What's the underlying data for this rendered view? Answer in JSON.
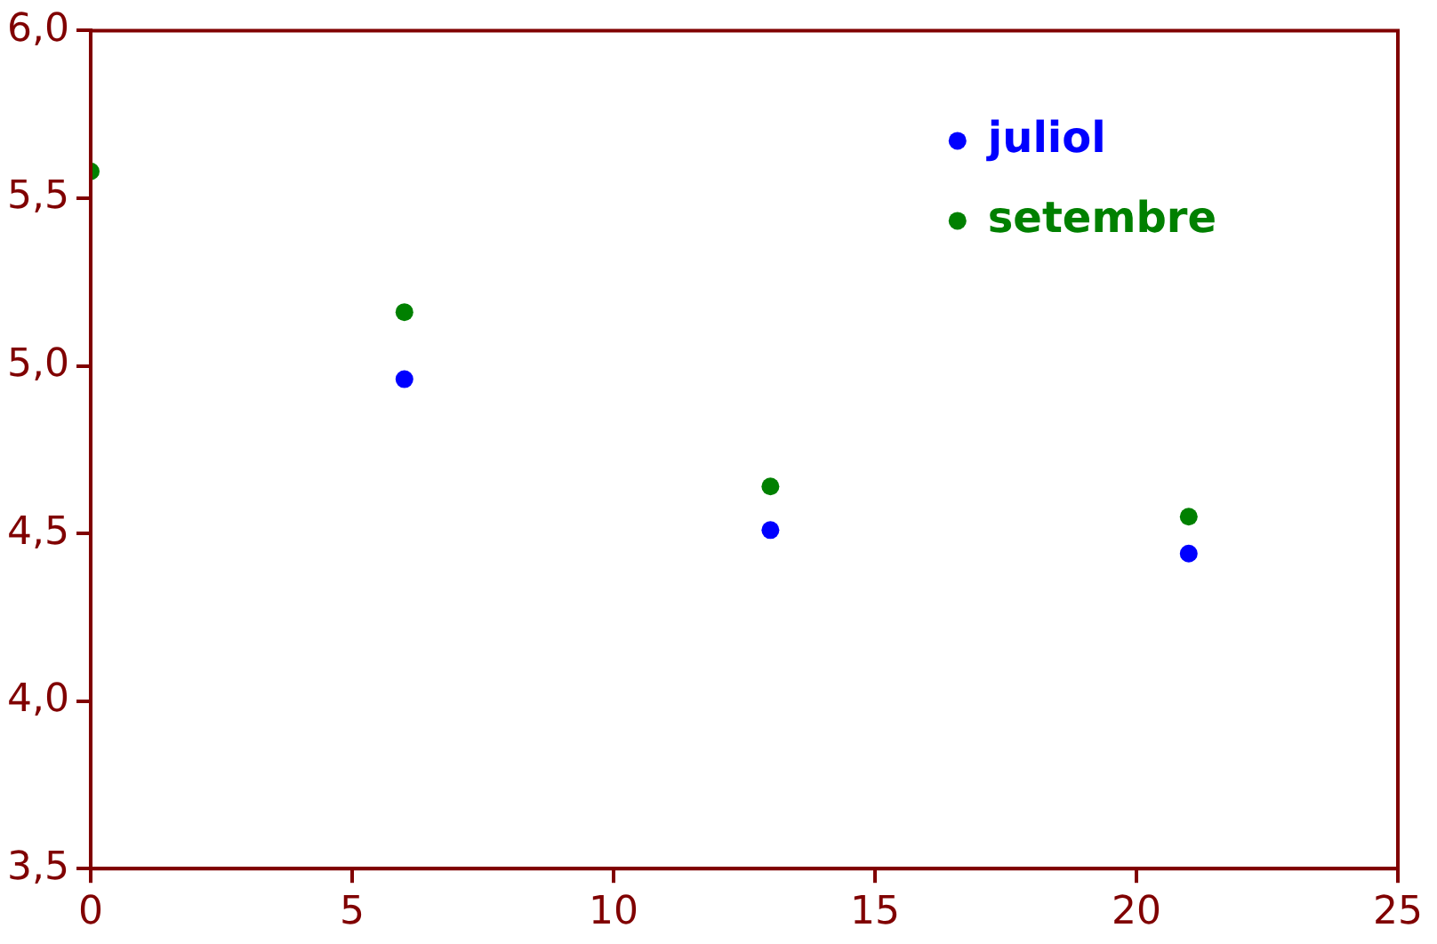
{
  "chart_data": {
    "type": "scatter",
    "x": [
      0,
      6,
      13,
      21
    ],
    "series": [
      {
        "name": "juliol",
        "color": "#0000ff",
        "values": [
          null,
          4.96,
          4.51,
          4.44
        ]
      },
      {
        "name": "setembre",
        "color": "#008000",
        "values": [
          5.58,
          5.16,
          4.64,
          4.55
        ]
      }
    ],
    "xlim": [
      0,
      25
    ],
    "xticks": [
      0,
      5,
      10,
      15,
      20,
      25
    ],
    "ylim": [
      3.5,
      6
    ],
    "yticks": [
      {
        "value": 3.5,
        "label": "3,5"
      },
      {
        "value": 4,
        "label": "4,0"
      },
      {
        "value": 4.5,
        "label": "4,5"
      },
      {
        "value": 5,
        "label": "5,0"
      },
      {
        "value": 5.5,
        "label": "5,5"
      },
      {
        "value": 6,
        "label": "6,0"
      }
    ],
    "grid": false,
    "legend": "top right",
    "marker": "circle"
  }
}
